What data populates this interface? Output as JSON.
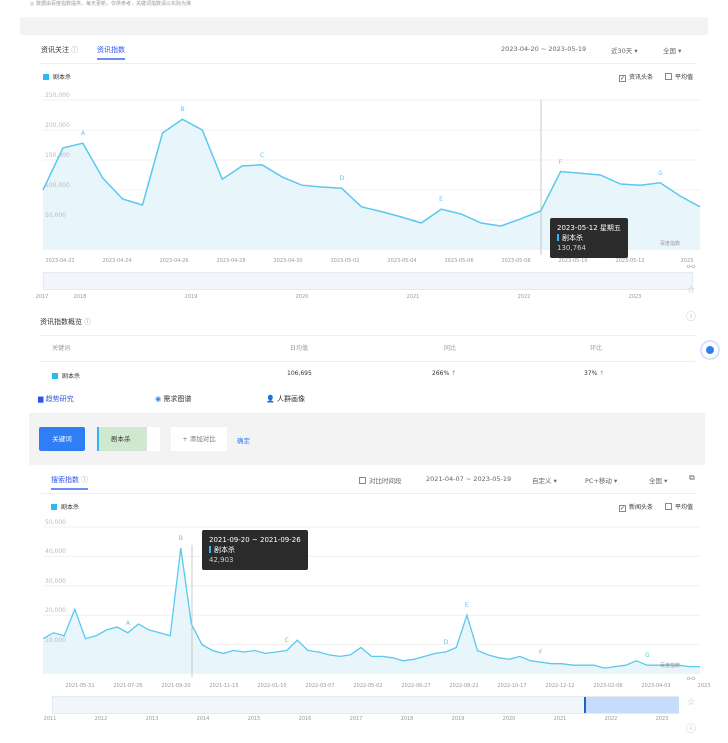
{
  "header": {
    "notice": "◎ 数据由百度指数提供，每天更新，仅供参考，关键词指数请以实际为准"
  },
  "news": {
    "tabs": [
      {
        "label": "资讯关注"
      },
      {
        "label": "资讯指数"
      }
    ],
    "date_range": "2023-04-20 ~ 2023-05-19",
    "period": "近30天",
    "region": "全国",
    "legend": "剧本杀",
    "opt1": "资讯头条",
    "opt2": "平均值",
    "y_ticks": [
      "250,000",
      "200,000",
      "150,000",
      "100,000",
      "50,000"
    ],
    "x_ticks": [
      "2023-04-22",
      "2023-04-24",
      "2023-04-26",
      "2023-04-28",
      "2023-04-30",
      "2023-05-02",
      "2023-05-04",
      "2023-05-06",
      "2023-05-08",
      "2023-05-10",
      "2023-05-12",
      "2023"
    ],
    "years": [
      "2017",
      "2018",
      "2019",
      "2020",
      "2021",
      "2022",
      "2023"
    ],
    "markers": [
      "A",
      "B",
      "C",
      "D",
      "E",
      "F",
      "G"
    ],
    "watermark": "百度指数",
    "tooltip": {
      "date": "2023-05-12 星期五",
      "series": "剧本杀",
      "value": "130,764"
    },
    "overview_title": "资讯指数概览",
    "table": {
      "headers": [
        "关键词",
        "日均值",
        "同比",
        "环比"
      ],
      "row": {
        "keyword": "剧本杀",
        "avg": "106,695",
        "yoy": "266%",
        "mom": "37%"
      }
    },
    "nav": [
      "趋势研究",
      "需求图谱",
      "人群画像"
    ]
  },
  "search_bar": {
    "keyword_button": "关键词",
    "keyword": "剧本杀",
    "add_compare": "+ 添加对比",
    "confirm": "确定"
  },
  "search": {
    "title": "搜索指数",
    "compare_period": "对比时间段",
    "date_range": "2021-04-07 ~ 2023-05-19",
    "period": "自定义",
    "device": "PC+移动",
    "region": "全国",
    "legend": "剧本杀",
    "opt1": "新闻头条",
    "opt2": "平均值",
    "y_ticks": [
      "50,000",
      "40,000",
      "30,000",
      "20,000",
      "10,000"
    ],
    "x_ticks": [
      "2021-05-31",
      "2021-07-26",
      "2021-09-20",
      "2021-11-15",
      "2022-01-10",
      "2022-03-07",
      "2022-05-02",
      "2022-06-27",
      "2022-08-22",
      "2022-10-17",
      "2022-12-12",
      "2023-02-06",
      "2023-04-03",
      "2023"
    ],
    "years": [
      "2011",
      "2012",
      "2013",
      "2014",
      "2015",
      "2016",
      "2017",
      "2018",
      "2019",
      "2020",
      "2021",
      "2022",
      "2023"
    ],
    "markers": [
      "A",
      "B",
      "C",
      "D",
      "E",
      "F",
      "G"
    ],
    "watermark": "百度指数",
    "tooltip": {
      "date": "2021-09-20 ~ 2021-09-26",
      "series": "剧本杀",
      "value": "42,903"
    }
  },
  "colors": {
    "accent": "#2f54eb",
    "series": "#5bc8ef",
    "fill": "#e8f6fc",
    "up": "#f5732c"
  },
  "chart_data": [
    {
      "type": "area",
      "series": [
        {
          "name": "剧本杀",
          "values": [
            100000,
            170000,
            178000,
            120000,
            85000,
            75000,
            195000,
            218000,
            200000,
            118000,
            140000,
            142000,
            122000,
            108000,
            105000,
            103000,
            72000,
            64000,
            55000,
            45000,
            68000,
            60000,
            45000,
            40000,
            52000,
            65000,
            130764,
            128000,
            125000,
            110000,
            108000,
            112000,
            90000,
            72000
          ]
        }
      ],
      "ylim": [
        0,
        250000
      ]
    },
    {
      "type": "area",
      "series": [
        {
          "name": "剧本杀",
          "values": [
            12000,
            14000,
            13000,
            22000,
            12000,
            13000,
            15000,
            16000,
            14000,
            17000,
            15000,
            14000,
            13000,
            42903,
            17000,
            10000,
            8000,
            7000,
            8000,
            7500,
            8000,
            7000,
            7500,
            8000,
            11500,
            8000,
            7500,
            6500,
            6000,
            6500,
            9000,
            6000,
            6000,
            5500,
            4500,
            5000,
            6000,
            7000,
            7500,
            9000,
            20000,
            8000,
            6500,
            5500,
            5000,
            6000,
            4500,
            4000,
            3500,
            3500,
            3000,
            3000,
            3000,
            2000,
            2500,
            3000,
            4500,
            3000,
            3000,
            3000,
            3000,
            2500,
            2500
          ]
        }
      ],
      "ylim": [
        0,
        50000
      ]
    }
  ]
}
